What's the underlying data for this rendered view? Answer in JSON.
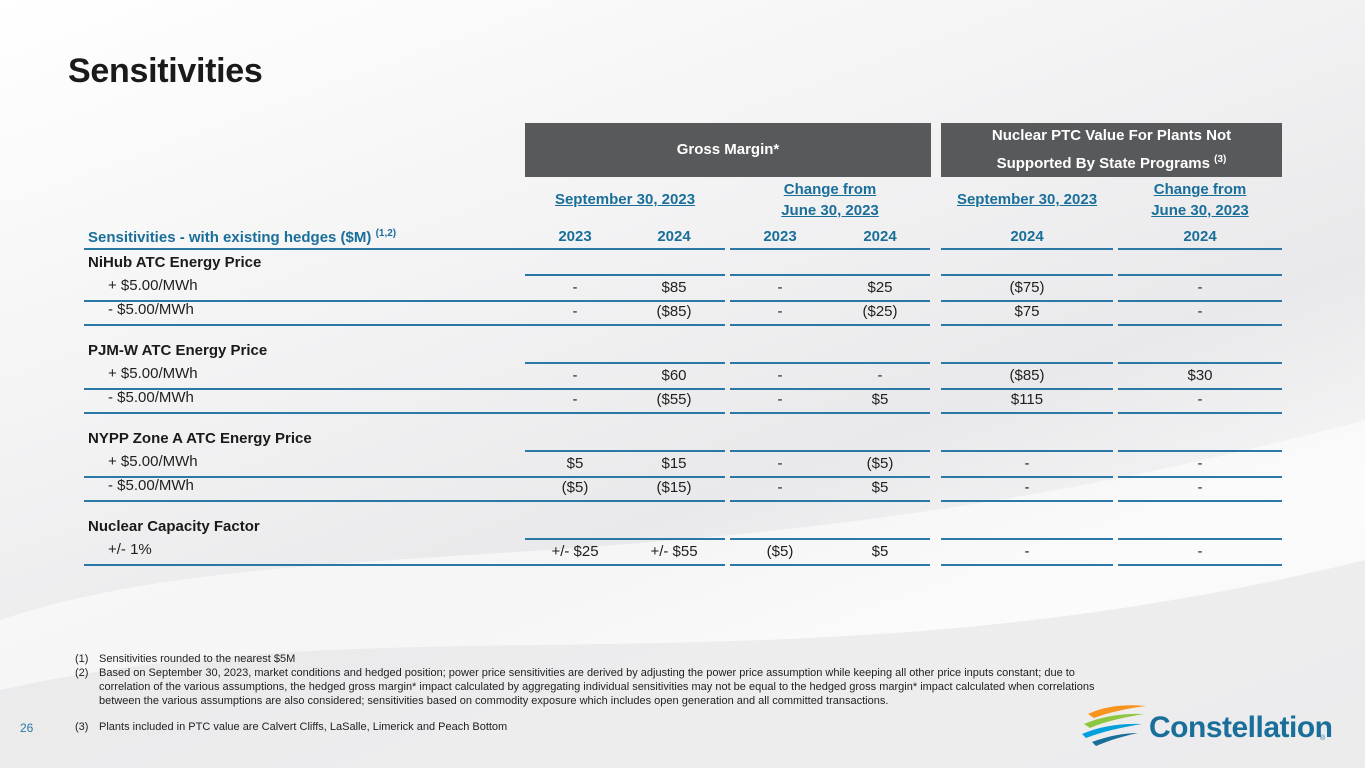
{
  "slide": {
    "title": "Sensitivities",
    "page_number": "26"
  },
  "header": {
    "gross_margin": "Gross Margin*",
    "ptc_line1": "Nuclear PTC Value For Plants Not",
    "ptc_line2": "Supported By State Programs",
    "ptc_sup": "(3)"
  },
  "subheader": {
    "gm_sep": "September 30, 2023",
    "gm_change_l1": "Change from",
    "gm_change_l2": "June 30, 2023",
    "ptc_sep": "September 30, 2023",
    "ptc_change_l1": "Change from",
    "ptc_change_l2": "June 30, 2023"
  },
  "table": {
    "label_header": "Sensitivities - with existing hedges ($M)",
    "label_header_sup": "(1,2)",
    "years": [
      "2023",
      "2024",
      "2023",
      "2024",
      "2024",
      "2024"
    ],
    "sections": [
      {
        "title": "NiHub ATC Energy Price",
        "rows": [
          {
            "label": "+ $5.00/MWh",
            "values": [
              "-",
              "$85",
              "-",
              "$25",
              "($75)",
              "-"
            ]
          },
          {
            "label": "- $5.00/MWh",
            "values": [
              "-",
              "($85)",
              "-",
              "($25)",
              "$75",
              "-"
            ]
          }
        ]
      },
      {
        "title": "PJM-W ATC Energy Price",
        "rows": [
          {
            "label": "+ $5.00/MWh",
            "values": [
              "-",
              "$60",
              "-",
              "-",
              "($85)",
              "$30"
            ]
          },
          {
            "label": "- $5.00/MWh",
            "values": [
              "-",
              "($55)",
              "-",
              "$5",
              "$115",
              "-"
            ]
          }
        ]
      },
      {
        "title": "NYPP Zone A ATC Energy Price",
        "rows": [
          {
            "label": "+ $5.00/MWh",
            "values": [
              "$5",
              "$15",
              "-",
              "($5)",
              "-",
              "-"
            ]
          },
          {
            "label": "- $5.00/MWh",
            "values": [
              "($5)",
              "($15)",
              "-",
              "$5",
              "-",
              "-"
            ]
          }
        ]
      },
      {
        "title": "Nuclear Capacity Factor",
        "rows": [
          {
            "label": "+/- 1%",
            "values": [
              "+/- $25",
              "+/- $55",
              "($5)",
              "$5",
              "-",
              "-"
            ]
          }
        ]
      }
    ]
  },
  "footnotes": [
    {
      "num": "(1)",
      "text": "Sensitivities rounded to the nearest $5M"
    },
    {
      "num": "(2)",
      "text": "Based on September 30, 2023, market conditions and hedged position; power price sensitivities are derived by adjusting the power price assumption while keeping all other price inputs constant; due to correlation of the various assumptions, the hedged gross margin* impact calculated by aggregating individual sensitivities may not be equal to the hedged gross margin* impact calculated when correlations between the various assumptions are also considered; sensitivities based on commodity exposure which includes open generation and all committed transactions."
    },
    {
      "num": "(3)",
      "text": "Plants included in PTC value are Calvert Cliffs, LaSalle, Limerick and Peach Bottom"
    }
  ],
  "logo": {
    "name": "Constellation",
    "reg": "®",
    "colors": [
      "#f7941d",
      "#8dc63f",
      "#1a6f9a",
      "#00a0dc"
    ]
  }
}
